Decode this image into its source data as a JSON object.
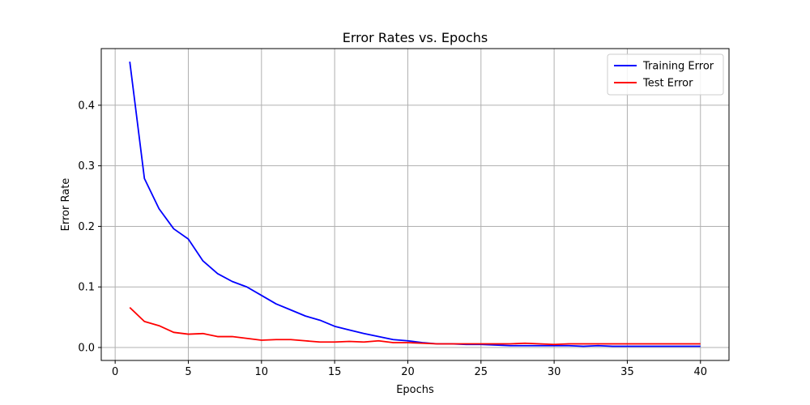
{
  "chart_data": {
    "type": "line",
    "title": "Error Rates vs. Epochs",
    "xlabel": "Epochs",
    "ylabel": "Error Rate",
    "xlim": [
      -0.95,
      41.95
    ],
    "ylim": [
      -0.0214,
      0.4935
    ],
    "xticks": [
      0,
      5,
      10,
      15,
      20,
      25,
      30,
      35,
      40
    ],
    "yticks": [
      0.0,
      0.1,
      0.2,
      0.3,
      0.4
    ],
    "xtick_labels": [
      "0",
      "5",
      "10",
      "15",
      "20",
      "25",
      "30",
      "35",
      "40"
    ],
    "ytick_labels": [
      "0.0",
      "0.1",
      "0.2",
      "0.3",
      "0.4"
    ],
    "grid": true,
    "legend_position": "top-right",
    "x": [
      1,
      2,
      3,
      4,
      5,
      6,
      7,
      8,
      9,
      10,
      11,
      12,
      13,
      14,
      15,
      16,
      17,
      18,
      19,
      20,
      21,
      22,
      23,
      24,
      25,
      26,
      27,
      28,
      29,
      30,
      31,
      32,
      33,
      34,
      35,
      36,
      37,
      38,
      39,
      40
    ],
    "series": [
      {
        "name": "Training Error",
        "color": "#0000ff",
        "values": [
          0.472,
          0.279,
          0.229,
          0.196,
          0.179,
          0.143,
          0.122,
          0.109,
          0.1,
          0.086,
          0.072,
          0.062,
          0.052,
          0.045,
          0.035,
          0.029,
          0.023,
          0.018,
          0.013,
          0.011,
          0.008,
          0.006,
          0.006,
          0.005,
          0.005,
          0.004,
          0.003,
          0.003,
          0.003,
          0.003,
          0.003,
          0.002,
          0.003,
          0.002,
          0.002,
          0.002,
          0.002,
          0.002,
          0.002,
          0.002
        ]
      },
      {
        "name": "Test Error",
        "color": "#ff0000",
        "values": [
          0.066,
          0.043,
          0.036,
          0.025,
          0.022,
          0.023,
          0.018,
          0.018,
          0.015,
          0.012,
          0.013,
          0.013,
          0.011,
          0.009,
          0.009,
          0.01,
          0.009,
          0.011,
          0.008,
          0.008,
          0.007,
          0.006,
          0.006,
          0.006,
          0.006,
          0.006,
          0.006,
          0.007,
          0.006,
          0.005,
          0.006,
          0.006,
          0.006,
          0.006,
          0.006,
          0.006,
          0.006,
          0.006,
          0.006,
          0.006
        ]
      }
    ]
  }
}
